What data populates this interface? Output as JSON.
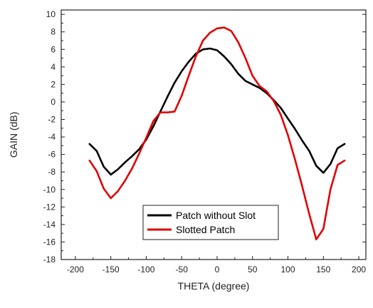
{
  "chart_data": {
    "type": "line",
    "title": "",
    "xlabel": "THETA (degree)",
    "ylabel": "GAIN (dB)",
    "xlim": [
      -220,
      210
    ],
    "ylim": [
      -18,
      10.5
    ],
    "x_ticks": [
      -200,
      -150,
      -100,
      -50,
      0,
      50,
      100,
      150,
      200
    ],
    "y_ticks": [
      -18,
      -16,
      -14,
      -12,
      -10,
      -8,
      -6,
      -4,
      -2,
      0,
      2,
      4,
      6,
      8,
      10
    ],
    "grid": false,
    "legend_position": "bottom-center",
    "series": [
      {
        "name": "Patch without Slot",
        "color": "#000000",
        "x": [
          -180,
          -170,
          -160,
          -150,
          -140,
          -130,
          -120,
          -110,
          -100,
          -90,
          -80,
          -70,
          -60,
          -50,
          -40,
          -30,
          -20,
          -10,
          0,
          10,
          20,
          30,
          40,
          50,
          60,
          70,
          80,
          90,
          100,
          110,
          120,
          130,
          140,
          150,
          160,
          170,
          180
        ],
        "values": [
          -4.8,
          -5.6,
          -7.4,
          -8.3,
          -7.7,
          -6.9,
          -6.2,
          -5.4,
          -4.3,
          -2.8,
          -1.1,
          0.6,
          2.2,
          3.5,
          4.6,
          5.5,
          6.0,
          6.1,
          5.9,
          5.2,
          4.3,
          3.2,
          2.4,
          2.0,
          1.6,
          1.0,
          0.2,
          -0.7,
          -1.9,
          -3.1,
          -4.4,
          -5.6,
          -7.3,
          -8.1,
          -7.1,
          -5.3,
          -4.8
        ]
      },
      {
        "name": "Slotted Patch",
        "color": "#e00000",
        "x": [
          -180,
          -170,
          -160,
          -150,
          -140,
          -130,
          -120,
          -110,
          -100,
          -90,
          -80,
          -70,
          -60,
          -50,
          -40,
          -30,
          -20,
          -10,
          0,
          10,
          20,
          30,
          40,
          50,
          60,
          70,
          80,
          90,
          100,
          110,
          120,
          130,
          140,
          150,
          160,
          170,
          180
        ],
        "values": [
          -6.7,
          -7.9,
          -9.9,
          -11.0,
          -10.2,
          -9.0,
          -7.6,
          -5.9,
          -4.1,
          -2.2,
          -1.2,
          -1.2,
          -1.1,
          0.7,
          3.0,
          5.2,
          7.0,
          7.9,
          8.4,
          8.5,
          8.1,
          6.8,
          5.0,
          3.0,
          1.8,
          1.2,
          0.1,
          -1.5,
          -3.8,
          -6.6,
          -9.6,
          -12.8,
          -15.7,
          -14.5,
          -10.0,
          -7.2,
          -6.7
        ]
      }
    ]
  }
}
